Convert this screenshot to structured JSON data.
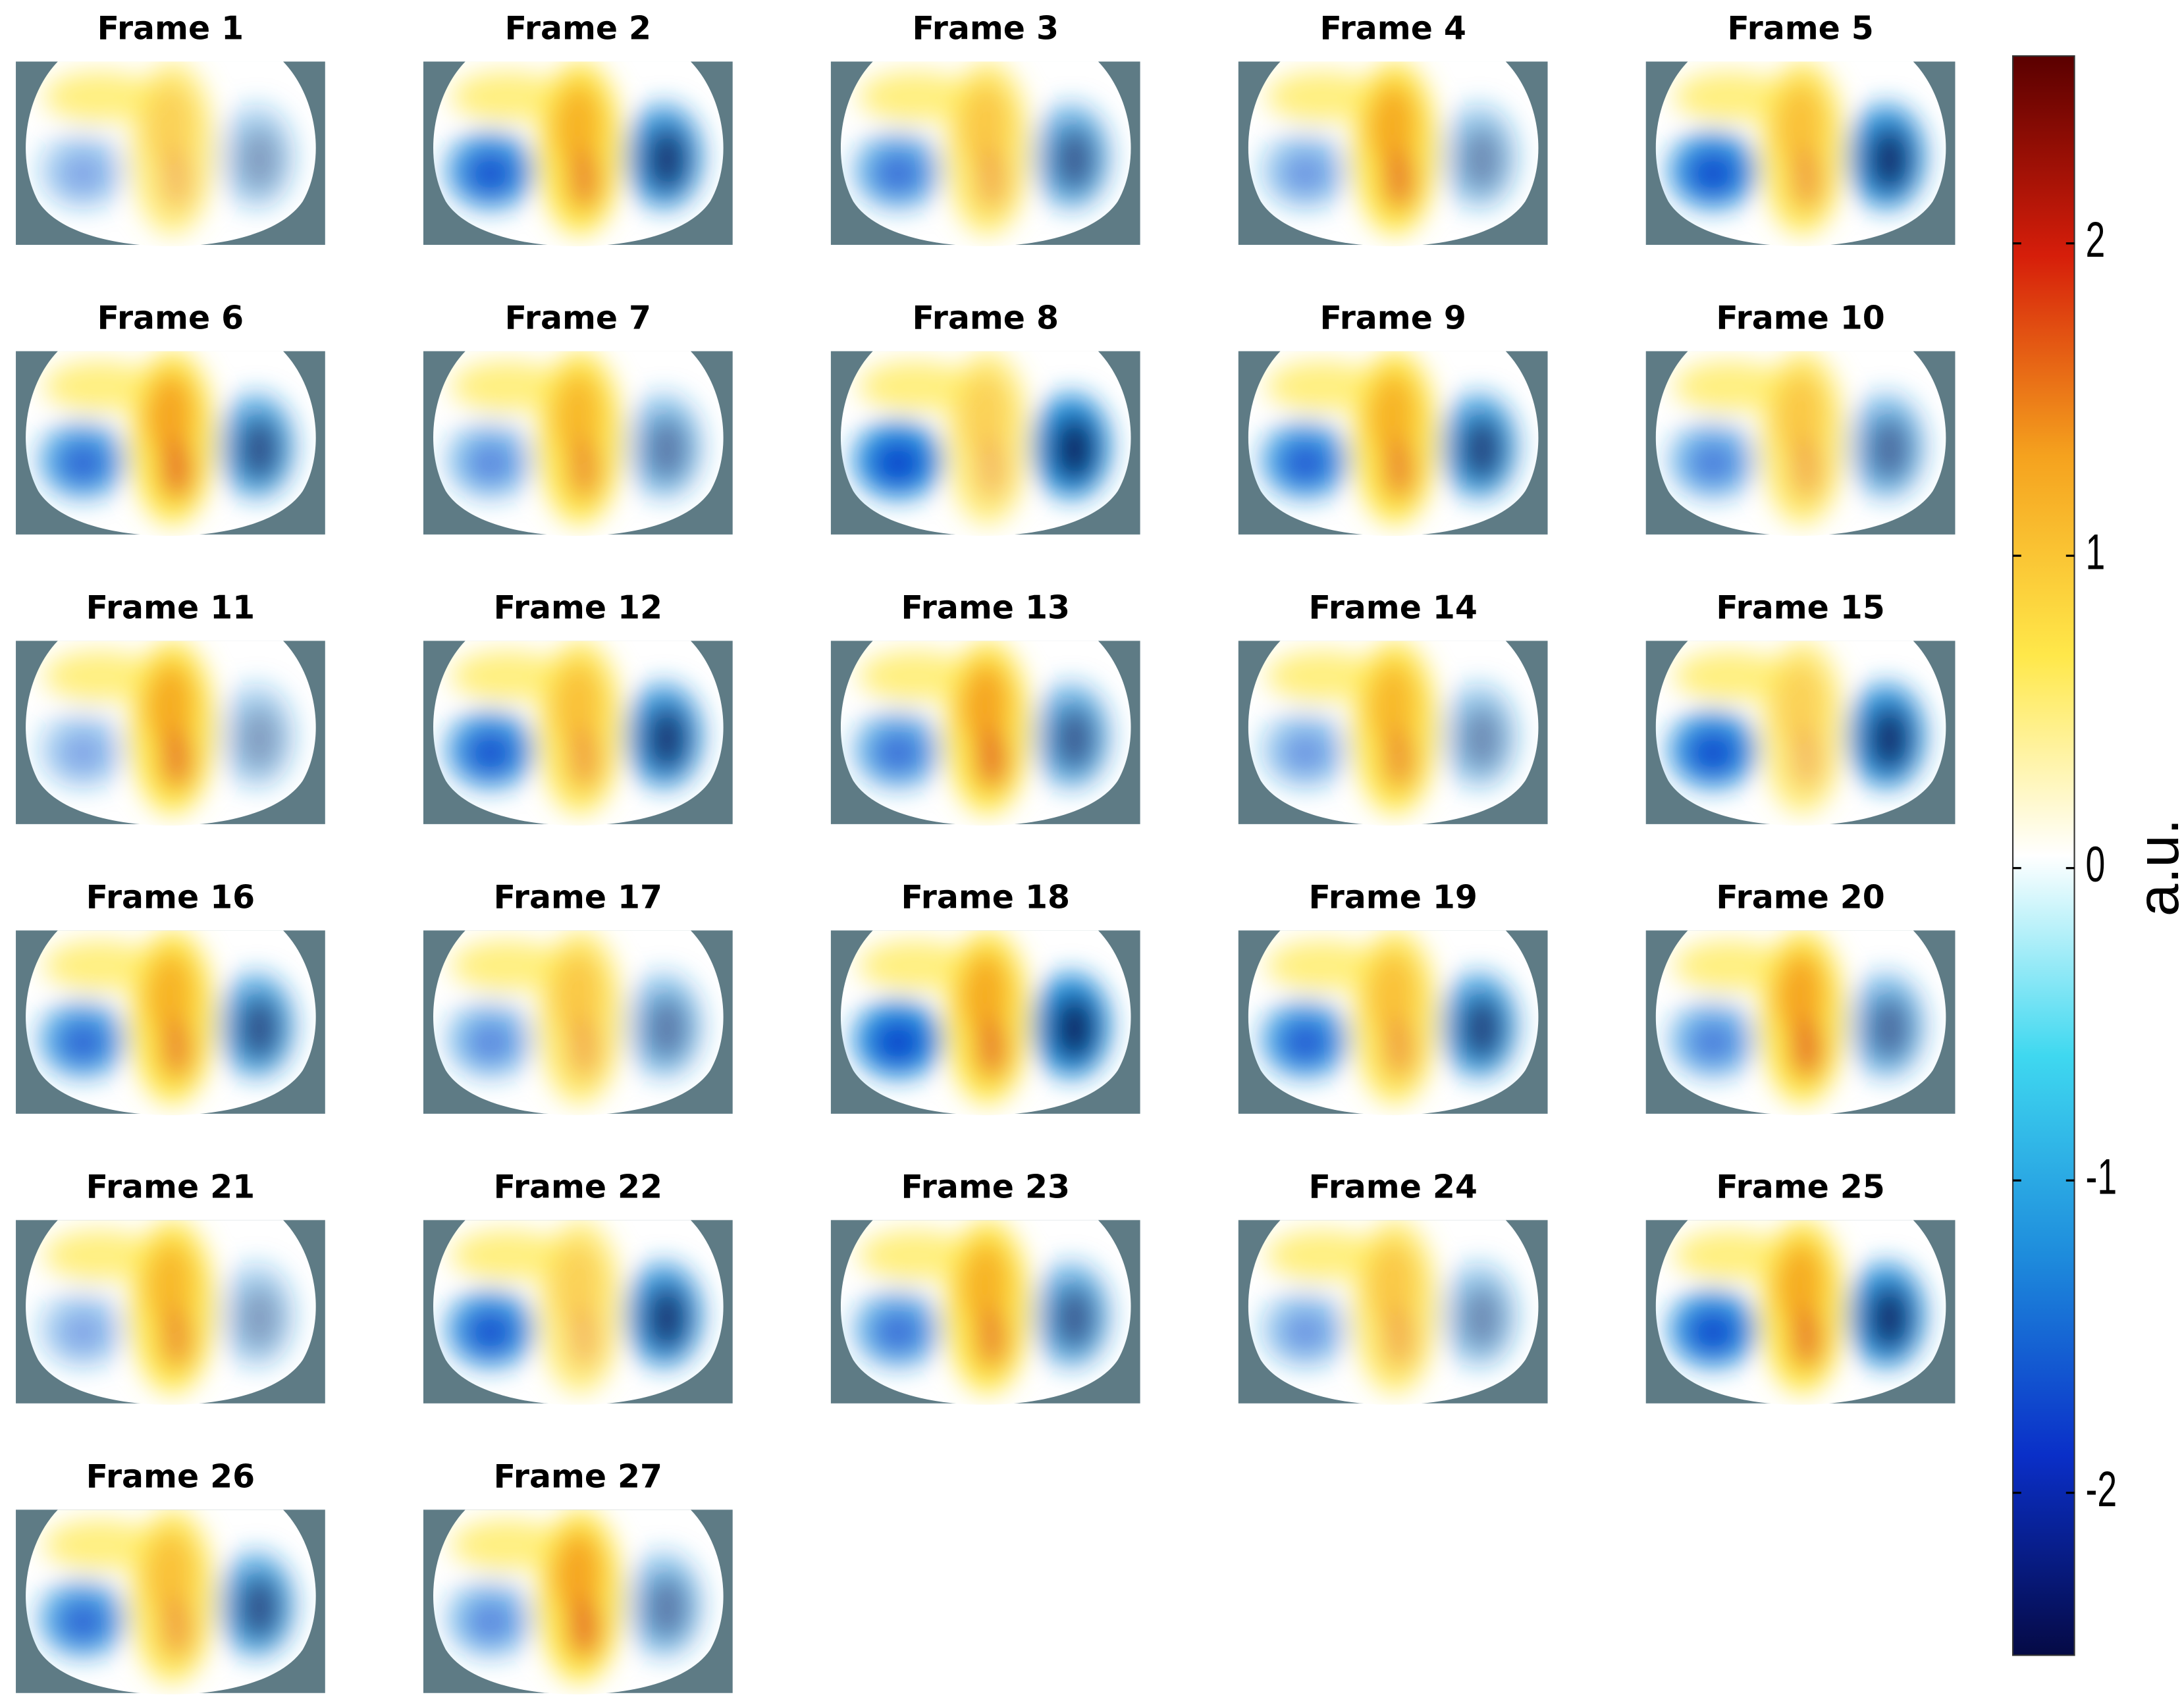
{
  "chart_data": {
    "type": "heatmap",
    "panels": [
      "Frame 1",
      "Frame 2",
      "Frame 3",
      "Frame 4",
      "Frame 5",
      "Frame 6",
      "Frame 7",
      "Frame 8",
      "Frame 9",
      "Frame 10",
      "Frame 11",
      "Frame 12",
      "Frame 13",
      "Frame 14",
      "Frame 15",
      "Frame 16",
      "Frame 17",
      "Frame 18",
      "Frame 19",
      "Frame 20",
      "Frame 21",
      "Frame 22",
      "Frame 23",
      "Frame 24",
      "Frame 25",
      "Frame 26",
      "Frame 27"
    ],
    "colorbar": {
      "label": "a.u.",
      "clim": [
        -2.52,
        2.6
      ],
      "ticks": [
        -2,
        -1,
        0,
        1,
        2
      ],
      "colormap": [
        "#050a45",
        "#0a2fc8",
        "#1e8cdc",
        "#3fd8f0",
        "#ffffff",
        "#ffe84a",
        "#f5a21e",
        "#d61e0a",
        "#5a0000"
      ]
    }
  }
}
